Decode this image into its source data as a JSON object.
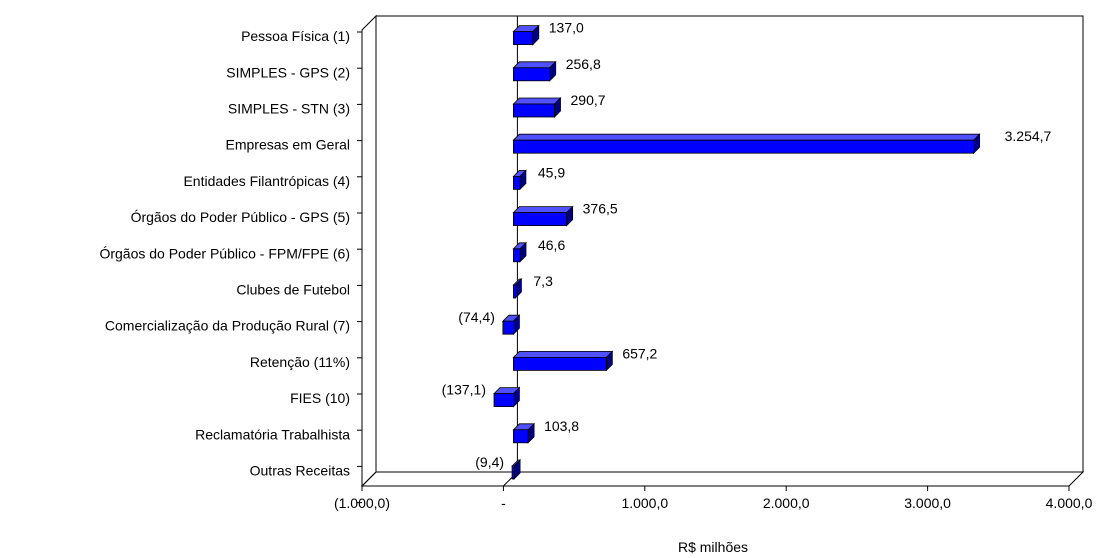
{
  "chart_data": {
    "type": "bar",
    "orientation": "horizontal",
    "categories": [
      "Pessoa Física (1)",
      "SIMPLES - GPS (2)",
      "SIMPLES - STN (3)",
      "Empresas em Geral",
      "Entidades Filantrópicas (4)",
      "Órgãos do Poder Público - GPS (5)",
      "Órgãos do Poder Público - FPM/FPE (6)",
      "Clubes de Futebol",
      "Comercialização da Produção Rural (7)",
      "Retenção (11%)",
      "FIES (10)",
      "Reclamatória Trabalhista",
      "Outras Receitas"
    ],
    "values": [
      137.0,
      256.8,
      290.7,
      3254.7,
      45.9,
      376.5,
      46.6,
      7.3,
      -74.4,
      657.2,
      -137.1,
      103.8,
      -9.4
    ],
    "value_labels": [
      "137,0",
      "256,8",
      "290,7",
      "3.254,7",
      "45,9",
      "376,5",
      "46,6",
      "7,3",
      "(74,4)",
      "657,2",
      "(137,1)",
      "103,8",
      "(9,4)"
    ],
    "xlabel": "R$ milhões",
    "xlim": [
      -1000,
      4000
    ],
    "xticks": [
      -1000,
      0,
      1000,
      2000,
      3000,
      4000
    ],
    "xtick_labels": [
      "(1.000,0)",
      "-",
      "1.000,0",
      "2.000,0",
      "3.000,0",
      "4.000,0"
    ],
    "grid": false,
    "style": "3d",
    "colors": {
      "bar_front": "#0000ff",
      "bar_top": "#5050ff",
      "bar_side": "#000080",
      "axis": "#000000"
    }
  }
}
